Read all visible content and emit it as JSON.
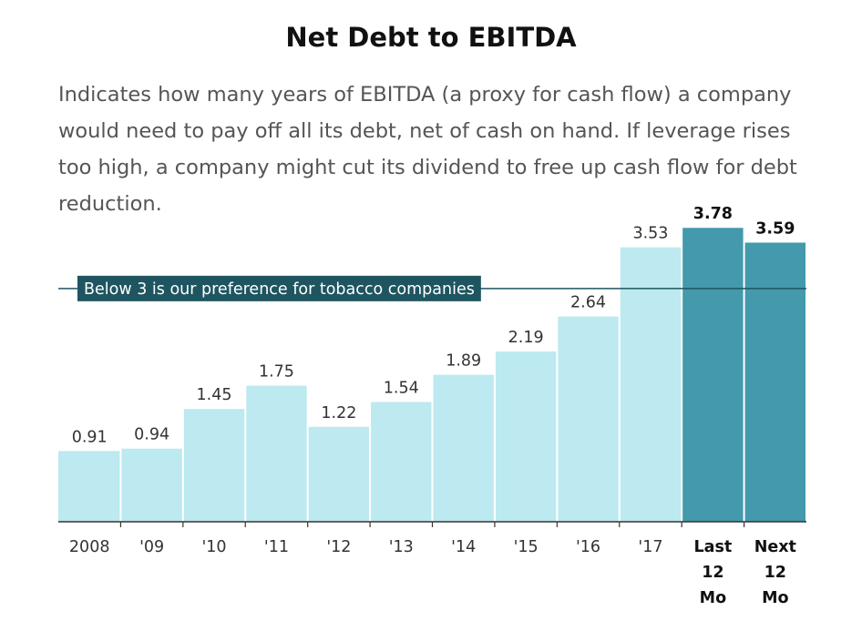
{
  "title": "Net Debt to EBITDA",
  "subtitle": "Indicates how many years of EBITDA (a proxy for cash flow) a company would need to pay off all its debt, net of cash on hand. If leverage rises too high, a company might cut its dividend to free up cash flow for debt reduction.",
  "chart_data": {
    "type": "bar",
    "categories": [
      "2008",
      "'09",
      "'10",
      "'11",
      "'12",
      "'13",
      "'14",
      "'15",
      "'16",
      "'17",
      "Last 12 Mo",
      "Next 12 Mo"
    ],
    "values": [
      0.91,
      0.94,
      1.45,
      1.75,
      1.22,
      1.54,
      1.89,
      2.19,
      2.64,
      3.53,
      3.78,
      3.59
    ],
    "value_labels": [
      "0.91",
      "0.94",
      "1.45",
      "1.75",
      "1.22",
      "1.54",
      "1.89",
      "2.19",
      "2.64",
      "3.53",
      "3.78",
      "3.59"
    ],
    "highlighted": [
      false,
      false,
      false,
      false,
      false,
      false,
      false,
      false,
      false,
      false,
      true,
      true
    ],
    "ylim": [
      0,
      3.9
    ],
    "grid": false,
    "colors": {
      "bar": "#bde9f0",
      "highlight": "#4499ac",
      "reference": "#1e5560",
      "reference_text": "#ffffff",
      "axis": "#333333",
      "label": "#333333"
    },
    "reference_line": {
      "value": 3,
      "label": "Below 3 is our preference for tobacco companies"
    }
  }
}
